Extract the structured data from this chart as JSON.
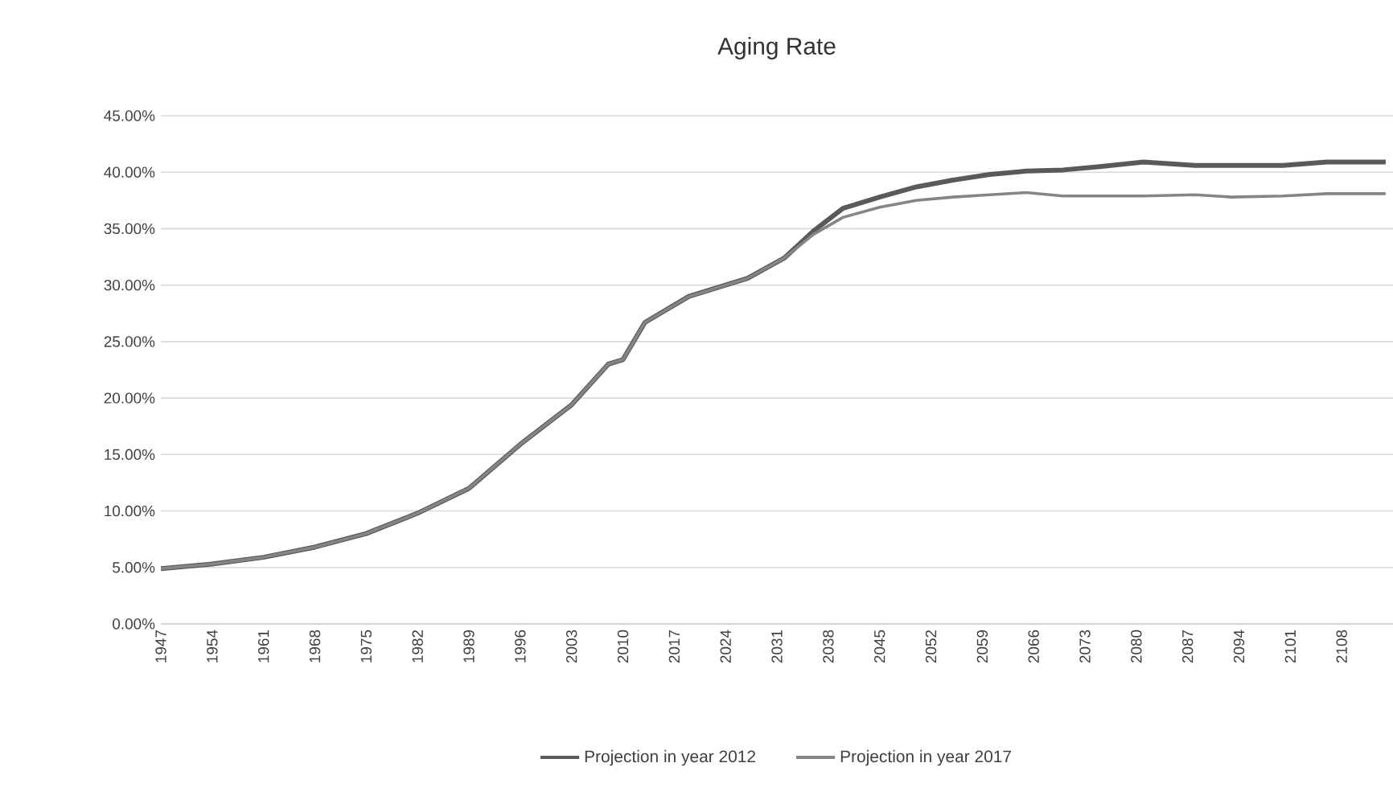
{
  "chart_data": {
    "type": "line",
    "title": "Aging Rate",
    "x": [
      1947,
      1954,
      1961,
      1968,
      1975,
      1982,
      1989,
      1996,
      2003,
      2008,
      2010,
      2013,
      2019,
      2027,
      2032,
      2036,
      2040,
      2045,
      2050,
      2055,
      2060,
      2065,
      2070,
      2075,
      2081,
      2088,
      2093,
      2100,
      2106,
      2114
    ],
    "series": [
      {
        "name": "Projection in year 2012",
        "color": "#5a5a5a",
        "values": [
          4.9,
          5.3,
          5.9,
          6.8,
          8.0,
          9.8,
          12.0,
          15.9,
          19.4,
          23.0,
          23.4,
          26.7,
          29.0,
          30.6,
          32.4,
          34.8,
          36.8,
          37.8,
          38.7,
          39.3,
          39.8,
          40.1,
          40.2,
          40.5,
          40.9,
          40.6,
          40.6,
          40.6,
          40.9,
          40.9
        ]
      },
      {
        "name": "Projection in year 2017",
        "color": "#858585",
        "values": [
          4.9,
          5.3,
          5.9,
          6.8,
          8.0,
          9.8,
          12.0,
          15.9,
          19.4,
          23.0,
          23.4,
          26.7,
          29.0,
          30.6,
          32.4,
          34.5,
          36.0,
          36.9,
          37.5,
          37.8,
          38.0,
          38.2,
          37.9,
          37.9,
          37.9,
          38.0,
          37.8,
          37.9,
          38.1,
          38.1
        ]
      }
    ],
    "xlim": [
      1947,
      2115
    ],
    "xticks": [
      1947,
      1954,
      1961,
      1968,
      1975,
      1982,
      1989,
      1996,
      2003,
      2010,
      2017,
      2024,
      2031,
      2038,
      2045,
      2052,
      2059,
      2066,
      2073,
      2080,
      2087,
      2094,
      2101,
      2108
    ],
    "ylim": [
      0,
      45
    ],
    "yticks": [
      {
        "value": 0,
        "label": "0.00%"
      },
      {
        "value": 5,
        "label": "5.00%"
      },
      {
        "value": 10,
        "label": "10.00%"
      },
      {
        "value": 15,
        "label": "15.00%"
      },
      {
        "value": 20,
        "label": "20.00%"
      },
      {
        "value": 25,
        "label": "25.00%"
      },
      {
        "value": 30,
        "label": "30.00%"
      },
      {
        "value": 35,
        "label": "35.00%"
      },
      {
        "value": 40,
        "label": "40.00%"
      },
      {
        "value": 45,
        "label": "45.00%"
      }
    ],
    "grid": "y",
    "legend": "bottom",
    "marker": "none",
    "line_style": "solid"
  }
}
